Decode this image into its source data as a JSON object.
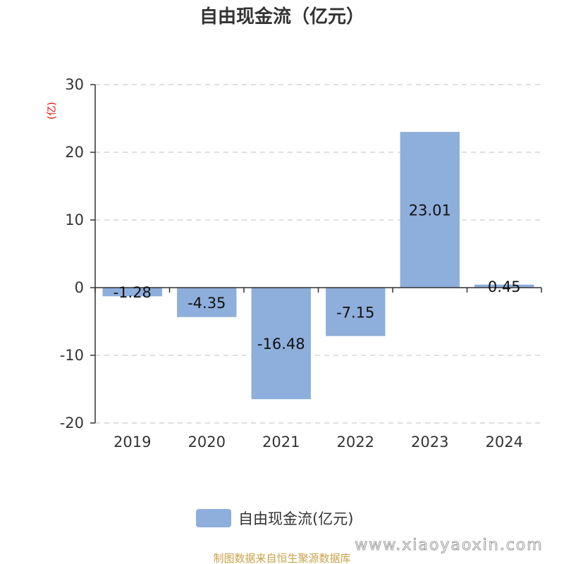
{
  "chart_data": {
    "type": "bar",
    "title": "自由现金流（亿元）",
    "unit_label": "(亿)",
    "categories": [
      "2019",
      "2020",
      "2021",
      "2022",
      "2023",
      "2024"
    ],
    "series": [
      {
        "name": "自由现金流(亿元)",
        "values": [
          -1.28,
          -4.35,
          -16.48,
          -7.15,
          23.01,
          0.45
        ],
        "color": "#8eaedb"
      }
    ],
    "data_labels": [
      "-1.28",
      "-4.35",
      "-16.48",
      "-7.15",
      "23.01",
      "0.45"
    ],
    "ylim": [
      -20,
      30
    ],
    "yticks": [
      -20,
      -10,
      0,
      10,
      20,
      30
    ],
    "grid": true,
    "legend_position": "bottom"
  },
  "footer": {
    "source": "制图数据来自恒生聚源数据库",
    "watermark": "www.xiaoyaoxin.com"
  }
}
